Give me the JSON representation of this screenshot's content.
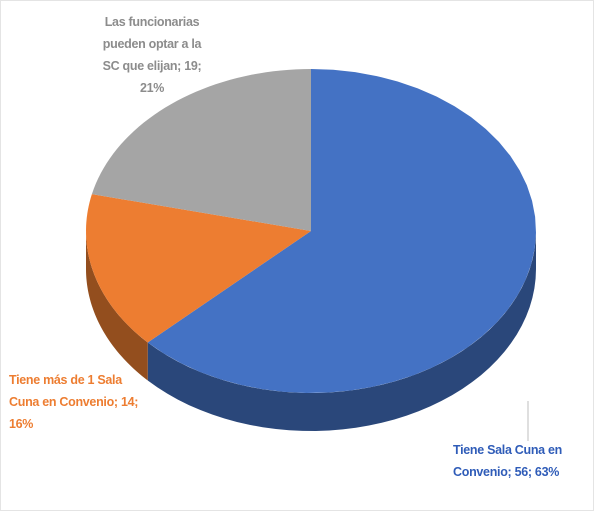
{
  "chart_data": {
    "type": "pie3d",
    "values": [
      56,
      14,
      19
    ],
    "value_labels": [
      "Tiene Sala Cuna en Convenio; 56; 63%",
      "Tiene más de 1 Sala Cuna en Convenio; 14; 16%",
      "Las funcionarias pueden optar a la SC que elijan; 19; 21%"
    ],
    "colors": [
      "#4472c4",
      "#ed7d31",
      "#a5a5a5"
    ],
    "label_colors": [
      "#2f5cb8",
      "#ed7d31",
      "#8c8c8c"
    ]
  }
}
